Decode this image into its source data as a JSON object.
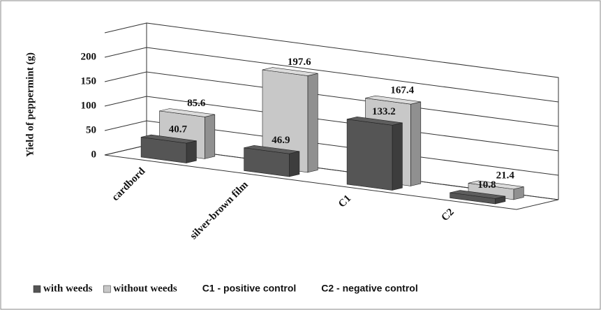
{
  "chart_data": {
    "type": "bar3d",
    "y_label": "Yield of peppermint (g)",
    "categories": [
      "cardbord",
      "silver-brown film",
      "C1",
      "C2"
    ],
    "series": [
      {
        "name": "with weeds",
        "color": "#555555",
        "values": [
          40.7,
          46.9,
          133.2,
          10.8
        ]
      },
      {
        "name": "without weeds",
        "color": "#c8c8c8",
        "values": [
          85.6,
          197.6,
          167.4,
          21.4
        ]
      }
    ],
    "ylim": [
      0,
      250
    ],
    "yticks": [
      0,
      50,
      100,
      150,
      200
    ],
    "grid": true,
    "notes": [
      "C1 - positive control",
      "C2 - negative control"
    ]
  }
}
